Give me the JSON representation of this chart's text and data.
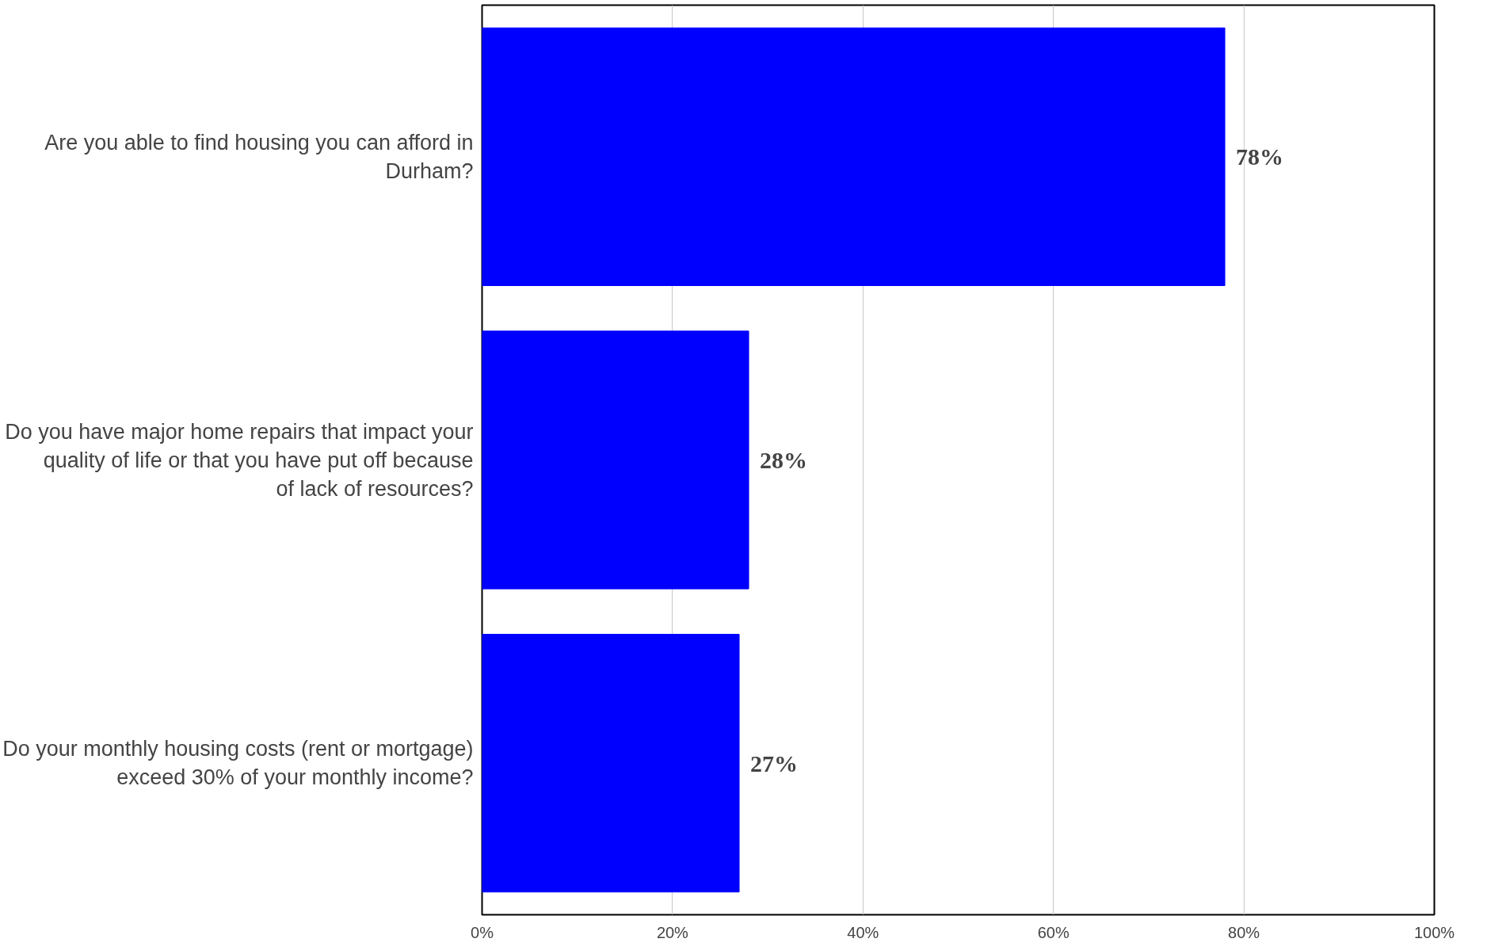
{
  "chart_data": {
    "type": "bar",
    "orientation": "horizontal",
    "categories": [
      "Are you able to find housing you can afford in Durham?",
      "Do you have major home repairs that impact your quality of life or that you have put off because of lack of resources?",
      "Do your monthly housing costs (rent or mortgage) exceed 30% of your monthly income?"
    ],
    "values": [
      78,
      28,
      27
    ],
    "value_labels": [
      "78%",
      "28%",
      "27%"
    ],
    "color": "#0000ff",
    "xlim": [
      0,
      100
    ],
    "xticks": [
      {
        "value": 0,
        "label": "0%"
      },
      {
        "value": 20,
        "label": "20%"
      },
      {
        "value": 40,
        "label": "40%"
      },
      {
        "value": 60,
        "label": "60%"
      },
      {
        "value": 80,
        "label": "80%"
      },
      {
        "value": 100,
        "label": "100%"
      }
    ],
    "grid": "x"
  }
}
